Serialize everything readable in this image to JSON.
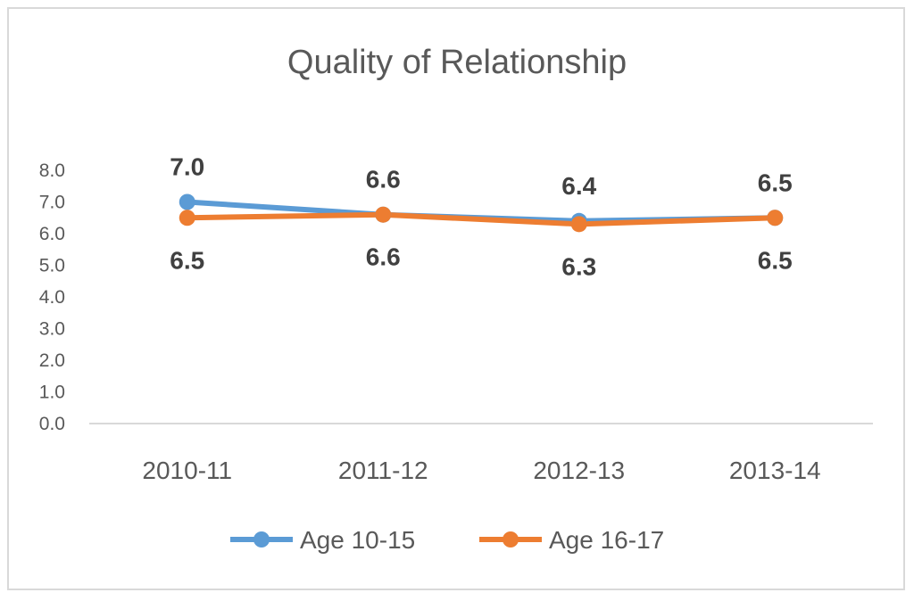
{
  "chart_data": {
    "type": "line",
    "title": "Quality of Relationship",
    "xlabel": "",
    "ylabel": "",
    "categories": [
      "2010-11",
      "2011-12",
      "2012-13",
      "2013-14"
    ],
    "ylim": [
      0,
      8
    ],
    "yticks": [
      "0.0",
      "1.0",
      "2.0",
      "3.0",
      "4.0",
      "5.0",
      "6.0",
      "7.0",
      "8.0"
    ],
    "grid": false,
    "legend": "bottom",
    "series": [
      {
        "name": "Age 10-15",
        "color": "#5b9bd5",
        "values": [
          7.0,
          6.6,
          6.4,
          6.5
        ],
        "labels": [
          "7.0",
          "6.6",
          "6.4",
          "6.5"
        ],
        "label_position": "above"
      },
      {
        "name": "Age 16-17",
        "color": "#ed7d31",
        "values": [
          6.5,
          6.6,
          6.3,
          6.5
        ],
        "labels": [
          "6.5",
          "6.6",
          "6.3",
          "6.5"
        ],
        "label_position": "below"
      }
    ]
  }
}
